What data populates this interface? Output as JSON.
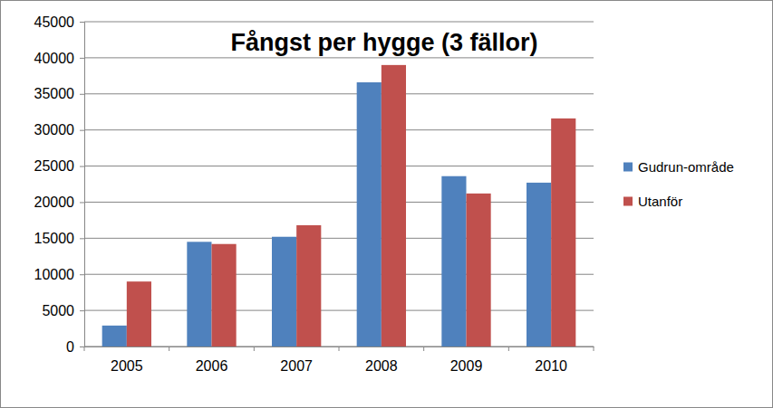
{
  "chart_data": {
    "type": "bar",
    "title": "Fångst per hygge (3 fällor)",
    "categories": [
      "2005",
      "2006",
      "2007",
      "2008",
      "2009",
      "2010"
    ],
    "series": [
      {
        "name": "Gudrun-område",
        "color": "#4f81bd",
        "values": [
          2900,
          14500,
          15200,
          36600,
          23600,
          22700
        ]
      },
      {
        "name": "Utanför",
        "color": "#c0504d",
        "values": [
          9000,
          14200,
          16800,
          39000,
          21200,
          31600
        ]
      }
    ],
    "ylim": [
      0,
      45000
    ],
    "yticks": [
      0,
      5000,
      10000,
      15000,
      20000,
      25000,
      30000,
      35000,
      40000,
      45000
    ],
    "grid": true,
    "legend": "right"
  }
}
